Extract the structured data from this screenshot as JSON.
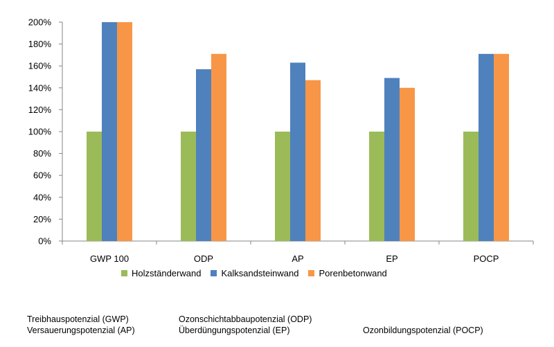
{
  "chart_data": {
    "type": "bar",
    "categories": [
      "GWP 100",
      "ODP",
      "AP",
      "EP",
      "POCP"
    ],
    "series": [
      {
        "name": "Holzständerwand",
        "color": "#9bbb59",
        "values": [
          100,
          100,
          100,
          100,
          100
        ]
      },
      {
        "name": "Kalksandsteinwand",
        "color": "#4f81bd",
        "values": [
          200,
          157,
          163,
          149,
          171
        ]
      },
      {
        "name": "Porenbetonwand",
        "color": "#f79646",
        "values": [
          200,
          171,
          147,
          140,
          171
        ]
      }
    ],
    "ylim": [
      0,
      200
    ],
    "yticks": [
      "0%",
      "20%",
      "40%",
      "60%",
      "80%",
      "100%",
      "120%",
      "140%",
      "160%",
      "180%",
      "200%"
    ],
    "grid": false,
    "legend_position": "bottom"
  },
  "notes": {
    "gwp": "Treibhauspotenzial (GWP)",
    "ap": "Versauerungspotenzial (AP)",
    "odp": "Ozonschichtabbaupotenzial (ODP)",
    "ep": "Überdüngungspotenzial (EP)",
    "pocp": "Ozonbildungspotenzial (POCP)"
  }
}
